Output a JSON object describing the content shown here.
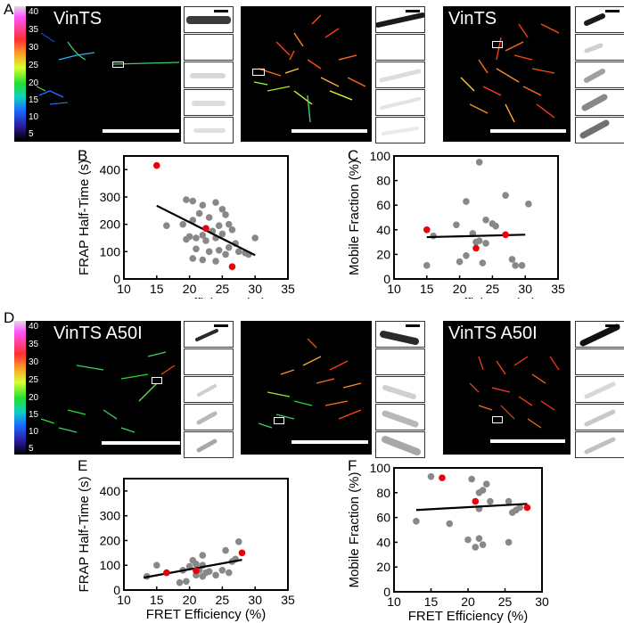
{
  "panel_labels": {
    "a": "A",
    "b": "B",
    "c": "C",
    "d": "D",
    "e": "E",
    "f": "F"
  },
  "colorbar": {
    "ticks": [
      "40",
      "35",
      "30",
      "25",
      "20",
      "15",
      "10",
      "5"
    ]
  },
  "row_a": {
    "cell1_label": "VinTS",
    "cell2_label": "",
    "cell3_label": "VinTS"
  },
  "row_d": {
    "cell1_label": "VinTS A50I",
    "cell2_label": "",
    "cell3_label": "VinTS A50I"
  },
  "colors": {
    "gray_point": "#888888",
    "red_point": "#e8000b",
    "fit_line": "#000000",
    "background": "#000000"
  },
  "chart_data": [
    {
      "id": "B",
      "type": "scatter",
      "xlabel": "FRET Efficiency (%)",
      "ylabel": "FRAP Half-Time (s)",
      "xlim": [
        10,
        35
      ],
      "ylim": [
        0,
        450
      ],
      "xticks": [
        "10",
        "15",
        "20",
        "25",
        "30",
        "35"
      ],
      "yticks": [
        "0",
        "100",
        "200",
        "300",
        "400"
      ],
      "gray_points": [
        [
          19.5,
          290
        ],
        [
          20.5,
          285
        ],
        [
          22,
          270
        ],
        [
          24,
          280
        ],
        [
          25,
          255
        ],
        [
          21.5,
          240
        ],
        [
          23,
          225
        ],
        [
          25.5,
          235
        ],
        [
          20.5,
          215
        ],
        [
          19,
          200
        ],
        [
          16.5,
          195
        ],
        [
          22.5,
          185
        ],
        [
          24.5,
          195
        ],
        [
          26,
          200
        ],
        [
          22,
          160
        ],
        [
          23.5,
          175
        ],
        [
          25,
          165
        ],
        [
          26.5,
          180
        ],
        [
          20,
          155
        ],
        [
          21,
          150
        ],
        [
          19.5,
          145
        ],
        [
          22.5,
          140
        ],
        [
          24,
          150
        ],
        [
          27,
          130
        ],
        [
          21,
          110
        ],
        [
          23,
          100
        ],
        [
          24.5,
          105
        ],
        [
          26,
          115
        ],
        [
          27.5,
          100
        ],
        [
          28.5,
          95
        ],
        [
          30,
          150
        ],
        [
          29,
          90
        ],
        [
          22,
          70
        ],
        [
          24,
          65
        ],
        [
          25.5,
          90
        ],
        [
          20.5,
          75
        ]
      ],
      "red_points": [
        [
          15,
          415
        ],
        [
          22.5,
          185
        ],
        [
          26.5,
          45
        ]
      ],
      "fit_line": [
        [
          15,
          268
        ],
        [
          30,
          87
        ]
      ]
    },
    {
      "id": "C",
      "type": "scatter",
      "xlabel": "FRET Efficiency (%)",
      "ylabel": "Mobile Fraction (%)",
      "xlim": [
        10,
        35
      ],
      "ylim": [
        0,
        100
      ],
      "xticks": [
        "10",
        "15",
        "20",
        "25",
        "30",
        "35"
      ],
      "yticks": [
        "0",
        "20",
        "40",
        "60",
        "80",
        "100"
      ],
      "gray_points": [
        [
          23,
          95
        ],
        [
          27,
          68
        ],
        [
          21,
          63
        ],
        [
          30.5,
          61
        ],
        [
          19.5,
          44
        ],
        [
          24,
          48
        ],
        [
          25,
          45
        ],
        [
          25.5,
          43
        ],
        [
          20,
          14
        ],
        [
          16,
          35
        ],
        [
          22,
          37
        ],
        [
          22.5,
          30
        ],
        [
          23,
          31
        ],
        [
          24,
          29
        ],
        [
          23.5,
          13
        ],
        [
          21,
          19
        ],
        [
          28,
          16
        ],
        [
          28.5,
          11
        ],
        [
          29.5,
          11
        ],
        [
          15,
          11
        ]
      ],
      "red_points": [
        [
          15,
          40
        ],
        [
          22.5,
          25
        ],
        [
          27,
          36
        ]
      ],
      "fit_line": [
        [
          15,
          34
        ],
        [
          30,
          36
        ]
      ]
    },
    {
      "id": "E",
      "type": "scatter",
      "xlabel": "FRET Efficiency (%)",
      "ylabel": "FRAP Half-Time (s)",
      "xlim": [
        10,
        35
      ],
      "ylim": [
        0,
        450
      ],
      "xticks": [
        "10",
        "15",
        "20",
        "25",
        "30",
        "35"
      ],
      "yticks": [
        "0",
        "100",
        "200",
        "300",
        "400"
      ],
      "gray_points": [
        [
          27.5,
          195
        ],
        [
          22,
          140
        ],
        [
          25.5,
          160
        ],
        [
          26.5,
          115
        ],
        [
          20.5,
          120
        ],
        [
          21,
          105
        ],
        [
          22,
          100
        ],
        [
          20,
          95
        ],
        [
          15,
          100
        ],
        [
          19,
          80
        ],
        [
          21.5,
          80
        ],
        [
          22.5,
          70
        ],
        [
          23,
          75
        ],
        [
          24,
          60
        ],
        [
          25,
          80
        ],
        [
          26,
          70
        ],
        [
          27,
          125
        ],
        [
          21,
          60
        ],
        [
          22,
          55
        ],
        [
          19.5,
          35
        ],
        [
          13.5,
          55
        ],
        [
          18.5,
          30
        ]
      ],
      "red_points": [
        [
          16.5,
          70
        ],
        [
          21,
          78
        ],
        [
          28,
          150
        ]
      ],
      "fit_line": [
        [
          13,
          50
        ],
        [
          28,
          122
        ]
      ]
    },
    {
      "id": "F",
      "type": "scatter",
      "xlabel": "FRET Efficiency (%)",
      "ylabel": "Mobile Fraction (%)",
      "xlim": [
        10,
        30
      ],
      "ylim": [
        0,
        100
      ],
      "xticks": [
        "10",
        "15",
        "20",
        "25",
        "30"
      ],
      "yticks": [
        "0",
        "20",
        "40",
        "60",
        "80",
        "100"
      ],
      "gray_points": [
        [
          15,
          93
        ],
        [
          20.5,
          91
        ],
        [
          21.5,
          80
        ],
        [
          22,
          82
        ],
        [
          22.5,
          87
        ],
        [
          23,
          73
        ],
        [
          25.5,
          73
        ],
        [
          27,
          68
        ],
        [
          26,
          64
        ],
        [
          21.5,
          67
        ],
        [
          17.5,
          55
        ],
        [
          13,
          57
        ],
        [
          20,
          42
        ],
        [
          21,
          36
        ],
        [
          22,
          38
        ],
        [
          21.5,
          43
        ],
        [
          25.5,
          40
        ],
        [
          26.5,
          66
        ]
      ],
      "red_points": [
        [
          16.5,
          92
        ],
        [
          21,
          73
        ],
        [
          28,
          68
        ]
      ],
      "fit_line": [
        [
          13,
          66
        ],
        [
          28,
          71
        ]
      ]
    }
  ]
}
